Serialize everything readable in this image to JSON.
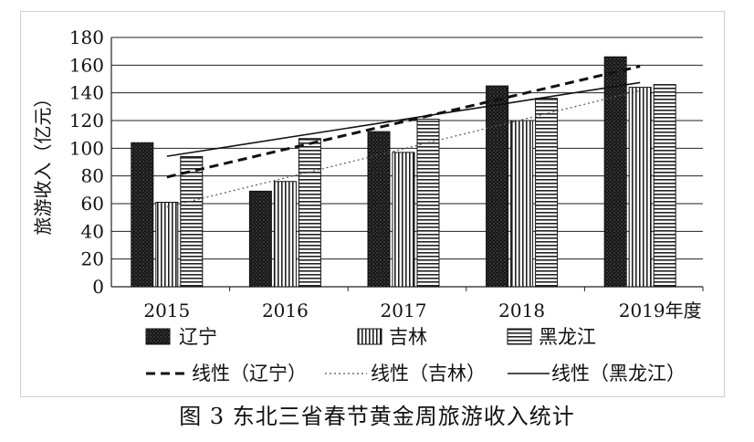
{
  "caption": "图 3  东北三省春节黄金周旅游收入统计",
  "chart_data": {
    "type": "bar",
    "categories": [
      "2015",
      "2016",
      "2017",
      "2018",
      "2019年度"
    ],
    "ylabel": "旅游收入（亿元）",
    "ylim": [
      0,
      180
    ],
    "yticks": [
      0,
      20,
      40,
      60,
      80,
      100,
      120,
      140,
      160,
      180
    ],
    "grid": true,
    "legend_position": "bottom",
    "series": [
      {
        "name": "辽宁",
        "values": [
          104,
          69,
          112,
          145,
          166
        ],
        "pattern": "dotted-dark"
      },
      {
        "name": "吉林",
        "values": [
          61,
          76,
          97,
          120,
          144
        ],
        "pattern": "vertical-stripes"
      },
      {
        "name": "黑龙江",
        "values": [
          94,
          107,
          121,
          136,
          146
        ],
        "pattern": "horizontal-stripes"
      }
    ],
    "trendlines": [
      {
        "name": "线性（辽宁）",
        "of": "辽宁",
        "style": "dashed-bold"
      },
      {
        "name": "线性（吉林）",
        "of": "吉林",
        "style": "dotted-thin"
      },
      {
        "name": "线性（黑龙江）",
        "of": "黑龙江",
        "style": "solid"
      }
    ]
  }
}
